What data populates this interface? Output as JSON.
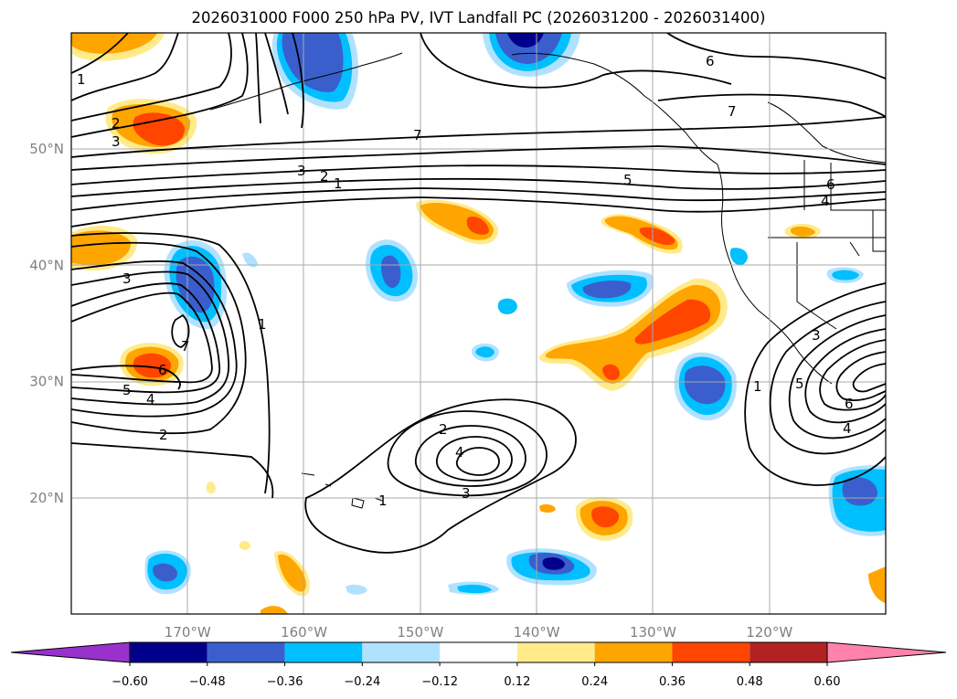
{
  "chart_data": {
    "type": "contour map",
    "title": "2026031000 F000 250 hPa PV, IVT Landfall PC (2026031200 - 2026031400)",
    "lon_range": [
      -180,
      -110
    ],
    "lat_range": [
      10,
      60
    ],
    "lon_ticks": [
      "170°W",
      "160°W",
      "150°W",
      "140°W",
      "130°W",
      "120°W"
    ],
    "lon_tick_values": [
      -170,
      -160,
      -150,
      -140,
      -130,
      -120
    ],
    "lat_ticks": [
      "20°N",
      "30°N",
      "40°N",
      "50°N"
    ],
    "lat_tick_values": [
      20,
      30,
      40,
      50
    ],
    "grid": true,
    "contour_labels": [
      "1",
      "2",
      "3",
      "4",
      "5",
      "6",
      "7"
    ],
    "colorbar": {
      "orientation": "horizontal",
      "extend": "both",
      "tick_labels": [
        "−0.60",
        "−0.48",
        "−0.36",
        "−0.24",
        "−0.12",
        "0.12",
        "0.24",
        "0.36",
        "0.48",
        "0.60"
      ],
      "levels": [
        -0.6,
        -0.48,
        -0.36,
        -0.24,
        -0.12,
        0.12,
        0.24,
        0.36,
        0.48,
        0.6
      ],
      "colors": [
        "#9932cc",
        "#00008b",
        "#3a5fcd",
        "#00bfff",
        "#b0e2ff",
        "#ffffff",
        "#ffeb8a",
        "#ffa500",
        "#ff4500",
        "#b22222",
        "#ff82ab"
      ]
    }
  }
}
